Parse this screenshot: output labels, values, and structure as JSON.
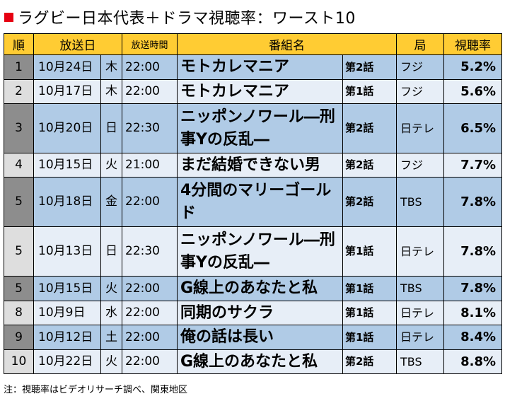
{
  "title": "ラグビー日本代表＋ドラマ視聴率：ワースト10",
  "accent_color": "#e60012",
  "header_color": "#ffcc33",
  "columns": {
    "rank": "順",
    "date": "放送日",
    "time": "放送時間",
    "title": "番組名",
    "station": "局",
    "rating": "視聴率"
  },
  "rows": [
    {
      "rank": "1",
      "date": "10月24日",
      "weekday": "木",
      "time": "22:00",
      "title": "モトカレマニア",
      "episode": "第2話",
      "station": "フジ",
      "rating": "5.2%"
    },
    {
      "rank": "2",
      "date": "10月17日",
      "weekday": "木",
      "time": "22:00",
      "title": "モトカレマニア",
      "episode": "第1話",
      "station": "フジ",
      "rating": "5.6%"
    },
    {
      "rank": "3",
      "date": "10月20日",
      "weekday": "日",
      "time": "22:30",
      "title": "ニッポンノワール―刑事Yの反乱―",
      "episode": "第2話",
      "station": "日テレ",
      "rating": "6.5%"
    },
    {
      "rank": "4",
      "date": "10月15日",
      "weekday": "火",
      "time": "21:00",
      "title": "まだ結婚できない男",
      "episode": "第2話",
      "station": "フジ",
      "rating": "7.7%"
    },
    {
      "rank": "5",
      "date": "10月18日",
      "weekday": "金",
      "time": "22:00",
      "title": "4分間のマリーゴールド",
      "episode": "第2話",
      "station": "TBS",
      "rating": "7.8%"
    },
    {
      "rank": "5",
      "date": "10月13日",
      "weekday": "日",
      "time": "22:30",
      "title": "ニッポンノワール―刑事Yの反乱―",
      "episode": "第1話",
      "station": "日テレ",
      "rating": "7.8%"
    },
    {
      "rank": "5",
      "date": "10月15日",
      "weekday": "火",
      "time": "22:00",
      "title": "G線上のあなたと私",
      "episode": "第1話",
      "station": "TBS",
      "rating": "7.8%"
    },
    {
      "rank": "8",
      "date": "10月9日",
      "weekday": "水",
      "time": "22:00",
      "title": "同期のサクラ",
      "episode": "第1話",
      "station": "日テレ",
      "rating": "8.1%"
    },
    {
      "rank": "9",
      "date": "10月12日",
      "weekday": "土",
      "time": "22:00",
      "title": "俺の話は長い",
      "episode": "第1話",
      "station": "日テレ",
      "rating": "8.4%"
    },
    {
      "rank": "10",
      "date": "10月22日",
      "weekday": "火",
      "time": "22:00",
      "title": "G線上のあなたと私",
      "episode": "第2話",
      "station": "TBS",
      "rating": "8.8%"
    }
  ],
  "note": "注：視聴率はビデオリサーチ調べ、関東地区"
}
